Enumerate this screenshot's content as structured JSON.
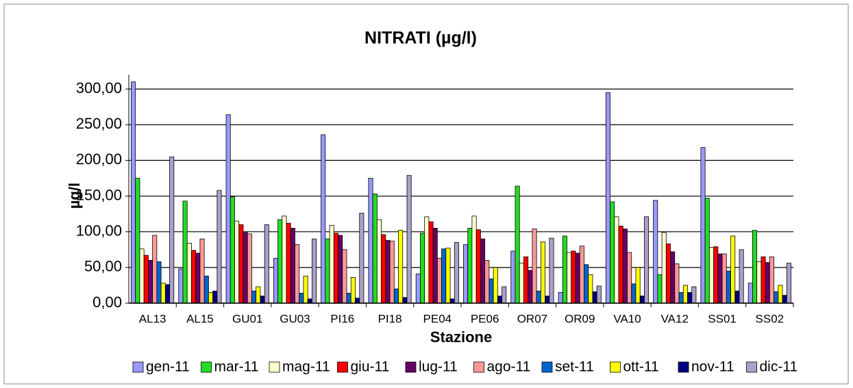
{
  "chart_data": {
    "type": "bar",
    "title": "NITRATI (µg/l)",
    "x_label": "Stazione",
    "y_label": "µg/l",
    "categories": [
      "AL13",
      "AL15",
      "GU01",
      "GU03",
      "PI16",
      "PI18",
      "PE04",
      "PE06",
      "OR07",
      "OR09",
      "VA10",
      "VA12",
      "SS01",
      "SS02"
    ],
    "series": [
      {
        "name": "gen-11",
        "color": "#9999ff",
        "values": [
          310,
          48,
          264,
          63,
          236,
          175,
          41,
          82,
          73,
          15,
          295,
          144,
          218,
          28
        ]
      },
      {
        "name": "mar-11",
        "color": "#22dd22",
        "values": [
          175,
          143,
          149,
          117,
          90,
          153,
          98,
          105,
          164,
          94,
          142,
          40,
          147,
          102
        ]
      },
      {
        "name": "mag-11",
        "color": "#ffffcc",
        "values": [
          76,
          84,
          115,
          122,
          109,
          117,
          121,
          122,
          56,
          71,
          121,
          99,
          78,
          58
        ]
      },
      {
        "name": "giu-11",
        "color": "#ff0000",
        "values": [
          67,
          74,
          110,
          112,
          98,
          96,
          114,
          103,
          65,
          73,
          108,
          83,
          79,
          65
        ]
      },
      {
        "name": "lug-11",
        "color": "#660066",
        "values": [
          60,
          70,
          100,
          105,
          95,
          88,
          105,
          90,
          46,
          70,
          104,
          72,
          69,
          57
        ]
      },
      {
        "name": "ago-11",
        "color": "#ff9999",
        "values": [
          95,
          90,
          97,
          82,
          75,
          87,
          63,
          60,
          104,
          80,
          71,
          55,
          69,
          65
        ]
      },
      {
        "name": "set-11",
        "color": "#0066cc",
        "values": [
          58,
          38,
          17,
          14,
          14,
          20,
          76,
          34,
          17,
          54,
          27,
          15,
          45,
          16
        ]
      },
      {
        "name": "ott-11",
        "color": "#ffff00",
        "values": [
          28,
          15,
          23,
          38,
          36,
          102,
          77,
          50,
          86,
          40,
          50,
          25,
          94,
          25
        ]
      },
      {
        "name": "nov-11",
        "color": "#000080",
        "values": [
          26,
          17,
          10,
          6,
          7,
          8,
          6,
          10,
          10,
          16,
          10,
          15,
          17,
          11
        ]
      },
      {
        "name": "dic-11",
        "color": "#aaa0c8",
        "values": [
          205,
          158,
          110,
          90,
          126,
          179,
          85,
          23,
          91,
          24,
          121,
          23,
          75,
          56
        ]
      }
    ],
    "ylim": [
      0,
      320
    ],
    "yticks": [
      {
        "value": 0,
        "label": "0,00"
      },
      {
        "value": 50,
        "label": "50,00"
      },
      {
        "value": 100,
        "label": "100,00"
      },
      {
        "value": 150,
        "label": "150,00"
      },
      {
        "value": 200,
        "label": "200,00"
      },
      {
        "value": 250,
        "label": "250,00"
      },
      {
        "value": 300,
        "label": "300,00"
      }
    ],
    "grid": true,
    "legend": "bottom"
  }
}
